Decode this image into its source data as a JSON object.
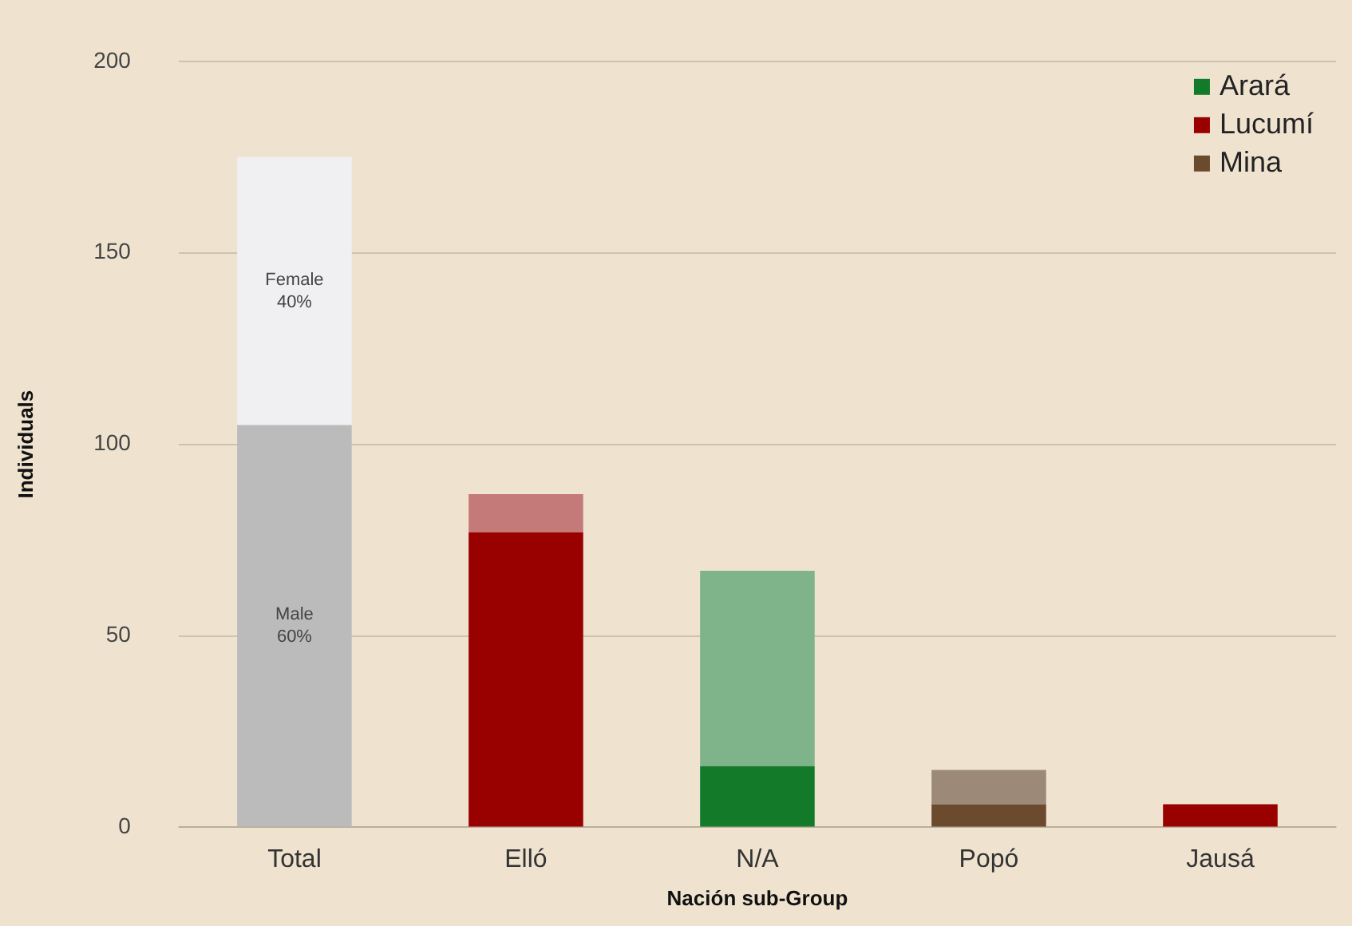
{
  "chart_data": {
    "type": "bar",
    "stacked": true,
    "xlabel": "Nación sub-Group",
    "ylabel": "Individuals",
    "categories": [
      "Total",
      "Elló",
      "N/A",
      "Popó",
      "Jausá"
    ],
    "ylim": [
      0,
      200
    ],
    "yticks": [
      0,
      50,
      100,
      150,
      200
    ],
    "grid": "y",
    "legend": "top right",
    "series": [
      {
        "colors": [
          "#bbbbbb",
          null,
          null,
          null,
          null
        ],
        "values": [
          105,
          null,
          null,
          null,
          null
        ]
      },
      {
        "name": "Arará",
        "color": "#137a2a",
        "values": [
          null,
          null,
          16,
          null,
          null
        ]
      },
      {
        "name": "Lucumí",
        "color": "#990000",
        "values": [
          null,
          77,
          null,
          null,
          6
        ]
      },
      {
        "name": "Mina",
        "color": "#6b4a2e",
        "values": [
          null,
          null,
          null,
          6,
          null
        ]
      },
      {
        "colors": [
          "#f0f0f2",
          "#c47a78",
          "#7fb38a",
          "#9c8978",
          null
        ],
        "values": [
          70,
          10,
          51,
          9,
          null
        ]
      }
    ],
    "annotations": [
      "Female 40%",
      "Male 60%"
    ]
  }
}
